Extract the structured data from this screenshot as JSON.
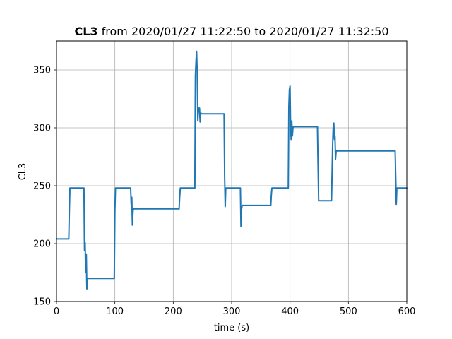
{
  "chart_data": {
    "type": "line",
    "title_bold": "CL3",
    "title_rest": " from 2020/01/27 11:22:50 to 2020/01/27 11:32:50",
    "xlabel": "time (s)",
    "ylabel": "CL3",
    "xlim": [
      0,
      600
    ],
    "ylim": [
      150,
      375
    ],
    "xticks": [
      0,
      100,
      200,
      300,
      400,
      500,
      600
    ],
    "yticks": [
      150,
      200,
      250,
      300,
      350
    ],
    "grid": true,
    "series": [
      {
        "color": "#1f77b4",
        "x": [
          0,
          21,
          22,
          23,
          24,
          47,
          48,
          49,
          50,
          51,
          52,
          53,
          54,
          55,
          56,
          58,
          99,
          100,
          101,
          102,
          127,
          128,
          129,
          130,
          131,
          132,
          133,
          135,
          210,
          211,
          212,
          213,
          237,
          238,
          239,
          240,
          241,
          242,
          243,
          244,
          245,
          246,
          247,
          248,
          249,
          250,
          287,
          288,
          289,
          290,
          291,
          315,
          316,
          317,
          318,
          319,
          320,
          367,
          368,
          369,
          397,
          398,
          399,
          400,
          401,
          402,
          403,
          404,
          405,
          406,
          407,
          408,
          447,
          448,
          449,
          450,
          471,
          472,
          473,
          474,
          475,
          476,
          477,
          478,
          479,
          480,
          481,
          482,
          483,
          484,
          485,
          580,
          581,
          582,
          583,
          584,
          600
        ],
        "y": [
          204,
          204,
          228,
          248,
          248,
          248,
          194,
          201,
          175,
          191,
          161,
          170,
          170,
          170,
          170,
          170,
          170,
          228,
          248,
          248,
          248,
          234,
          240,
          216,
          228,
          230,
          230,
          230,
          230,
          240,
          248,
          248,
          248,
          345,
          358,
          366,
          348,
          306,
          317,
          317,
          317,
          305,
          313,
          312,
          312,
          312,
          312,
          258,
          232,
          248,
          248,
          248,
          215,
          230,
          233,
          233,
          233,
          233,
          242,
          248,
          248,
          318,
          333,
          336,
          300,
          290,
          306,
          293,
          300,
          301,
          301,
          301,
          301,
          270,
          237,
          237,
          237,
          260,
          285,
          300,
          304,
          290,
          293,
          273,
          280,
          280,
          280,
          280,
          280,
          280,
          280,
          280,
          258,
          234,
          248,
          248,
          248
        ]
      }
    ]
  }
}
